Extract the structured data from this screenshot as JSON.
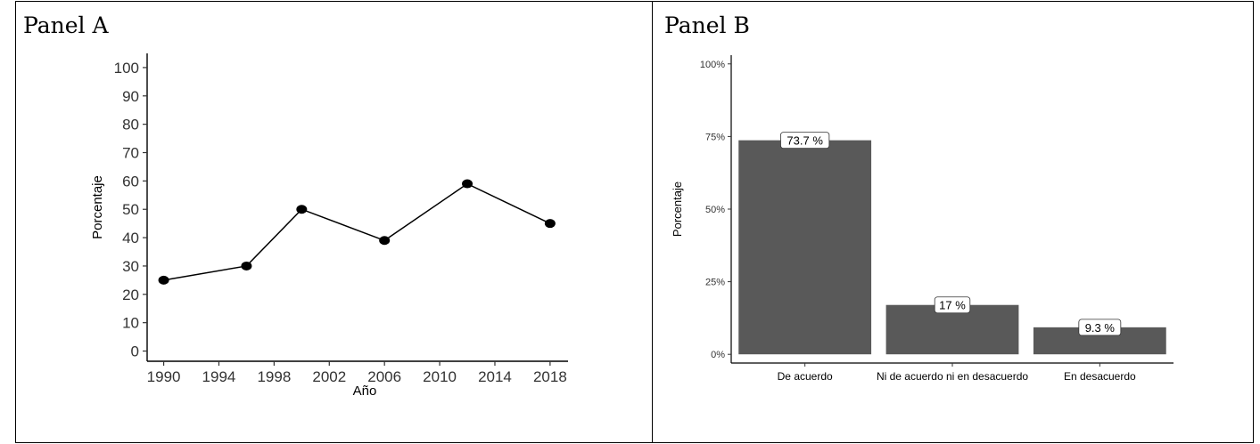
{
  "panels": [
    {
      "title": "Panel A"
    },
    {
      "title": "Panel B"
    }
  ],
  "chart_data": [
    {
      "type": "line",
      "title": "",
      "xlabel": "Año",
      "ylabel": "Porcentaje",
      "x": [
        1990,
        1996,
        2000,
        2006,
        2012,
        2018
      ],
      "series": [
        {
          "values": [
            25,
            30,
            50,
            39,
            59,
            45
          ]
        }
      ],
      "xticks": [
        "1990",
        "1994",
        "1998",
        "2002",
        "2006",
        "2010",
        "2014",
        "2018"
      ],
      "yticks": [
        "0",
        "10",
        "20",
        "30",
        "40",
        "50",
        "60",
        "70",
        "80",
        "90",
        "100"
      ],
      "xlim": [
        1988.8,
        2019.3
      ],
      "ylim": [
        -3.6,
        105
      ],
      "grid": false,
      "colors": {
        "line": "#000000",
        "marker": "#000000"
      }
    },
    {
      "type": "bar",
      "title": "",
      "xlabel": "",
      "ylabel": "Porcentaje",
      "categories": [
        "De acuerdo",
        "Ni de acuerdo ni en desacuerdo",
        "En desacuerdo"
      ],
      "values": [
        73.7,
        17,
        9.3
      ],
      "data_labels": [
        "73.7 %",
        "17 %",
        "9.3 %"
      ],
      "yticks": [
        "0%",
        "25%",
        "50%",
        "75%",
        "100%"
      ],
      "ylim": [
        -3,
        103
      ],
      "grid": false,
      "colors": {
        "bar": "#595959"
      }
    }
  ]
}
